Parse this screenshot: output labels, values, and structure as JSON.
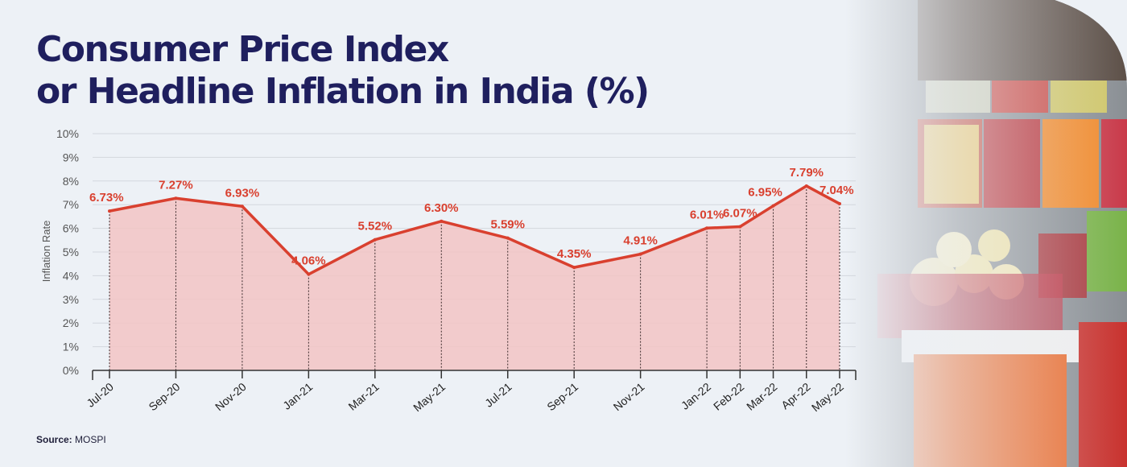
{
  "title": {
    "line1": "Consumer Price Index",
    "line2": "or Headline Inflation in India (%)"
  },
  "source": {
    "label": "Source:",
    "value": "MOSPI"
  },
  "colors": {
    "title": "#1f1f5e",
    "line": "#d9402f",
    "fill": "#f2c4c4",
    "background": "#edf1f6"
  },
  "chart_data": {
    "type": "area",
    "ylabel": "Inflation Rate",
    "xlabel": "",
    "ylim": [
      0,
      10
    ],
    "yticks": [
      "0%",
      "1%",
      "2%",
      "3%",
      "4%",
      "5%",
      "6%",
      "7%",
      "8%",
      "9%",
      "10%"
    ],
    "grid": true,
    "x_ticks": [
      "Jul-20",
      "Sep-20",
      "Nov-20",
      "Jan-21",
      "Mar-21",
      "May-21",
      "Jul-21",
      "Sep-21",
      "Nov-21",
      "Jan-22",
      "Feb-22",
      "Mar-22",
      "Apr-22",
      "May-22"
    ],
    "points": [
      {
        "x": "Jul-20",
        "y": 6.73,
        "label": "6.73%"
      },
      {
        "x": "Sep-20",
        "y": 7.27,
        "label": "7.27%"
      },
      {
        "x": "Nov-20",
        "y": 6.93,
        "label": "6.93%"
      },
      {
        "x": "Jan-21",
        "y": 4.06,
        "label": "4.06%"
      },
      {
        "x": "Mar-21",
        "y": 5.52,
        "label": "5.52%"
      },
      {
        "x": "May-21",
        "y": 6.3,
        "label": "6.30%"
      },
      {
        "x": "Jul-21",
        "y": 5.59,
        "label": "5.59%"
      },
      {
        "x": "Sep-21",
        "y": 4.35,
        "label": "4.35%"
      },
      {
        "x": "Nov-21",
        "y": 4.91,
        "label": "4.91%"
      },
      {
        "x": "Jan-22",
        "y": 6.01,
        "label": "6.01%"
      },
      {
        "x": "Feb-22",
        "y": 6.07,
        "label": "6.07%"
      },
      {
        "x": "Mar-22",
        "y": 6.95,
        "label": "6.95%"
      },
      {
        "x": "Apr-22",
        "y": 7.79,
        "label": "7.79%"
      },
      {
        "x": "May-22",
        "y": 7.04,
        "label": "7.04%"
      }
    ]
  }
}
